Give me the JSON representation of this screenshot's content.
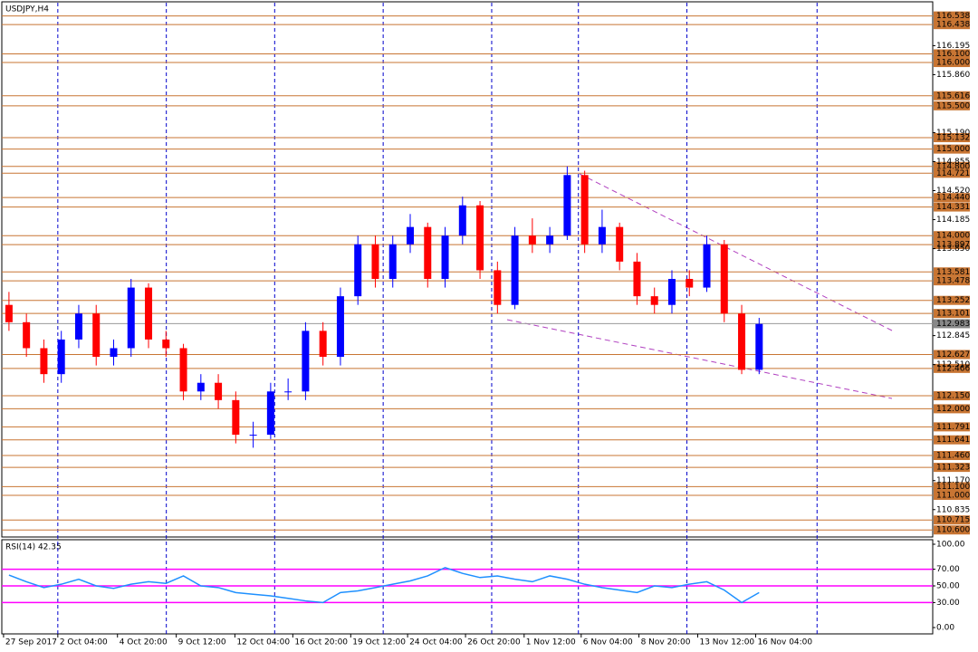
{
  "chart_data": [
    {
      "type": "candlestick",
      "title": "USDJPY,H4",
      "ohlc": [
        [
          113.2,
          113.35,
          112.9,
          113.0
        ],
        [
          113.0,
          113.1,
          112.6,
          112.7
        ],
        [
          112.7,
          112.8,
          112.3,
          112.4
        ],
        [
          112.4,
          112.9,
          112.3,
          112.8
        ],
        [
          112.8,
          113.2,
          112.7,
          113.1
        ],
        [
          113.1,
          113.2,
          112.5,
          112.6
        ],
        [
          112.6,
          112.8,
          112.5,
          112.7
        ],
        [
          112.7,
          113.5,
          112.6,
          113.4
        ],
        [
          113.4,
          113.45,
          112.7,
          112.8
        ],
        [
          112.8,
          112.9,
          112.6,
          112.7
        ],
        [
          112.7,
          112.75,
          112.1,
          112.2
        ],
        [
          112.2,
          112.4,
          112.1,
          112.3
        ],
        [
          112.3,
          112.4,
          112.0,
          112.1
        ],
        [
          112.1,
          112.2,
          111.6,
          111.7
        ],
        [
          111.7,
          111.85,
          111.55,
          111.7
        ],
        [
          111.7,
          112.3,
          111.65,
          112.2
        ],
        [
          112.2,
          112.35,
          112.1,
          112.2
        ],
        [
          112.2,
          113.0,
          112.1,
          112.9
        ],
        [
          112.9,
          113.0,
          112.5,
          112.6
        ],
        [
          112.6,
          113.4,
          112.5,
          113.3
        ],
        [
          113.3,
          114.0,
          113.2,
          113.9
        ],
        [
          113.9,
          114.0,
          113.4,
          113.5
        ],
        [
          113.5,
          114.0,
          113.4,
          113.9
        ],
        [
          113.9,
          114.25,
          113.8,
          114.1
        ],
        [
          114.1,
          114.15,
          113.4,
          113.5
        ],
        [
          113.5,
          114.1,
          113.4,
          114.0
        ],
        [
          114.0,
          114.45,
          113.9,
          114.35
        ],
        [
          114.35,
          114.4,
          113.5,
          113.6
        ],
        [
          113.6,
          113.7,
          113.1,
          113.2
        ],
        [
          113.2,
          114.1,
          113.15,
          114.0
        ],
        [
          114.0,
          114.2,
          113.8,
          113.9
        ],
        [
          113.9,
          114.1,
          113.8,
          114.0
        ],
        [
          114.0,
          114.8,
          113.95,
          114.7
        ],
        [
          114.7,
          114.75,
          113.8,
          113.9
        ],
        [
          113.9,
          114.3,
          113.8,
          114.1
        ],
        [
          114.1,
          114.15,
          113.6,
          113.7
        ],
        [
          113.7,
          113.8,
          113.2,
          113.3
        ],
        [
          113.3,
          113.4,
          113.1,
          113.2
        ],
        [
          113.2,
          113.6,
          113.1,
          113.5
        ],
        [
          113.5,
          113.6,
          113.3,
          113.4
        ],
        [
          113.4,
          114.0,
          113.35,
          113.9
        ],
        [
          113.9,
          113.95,
          113.0,
          113.1
        ],
        [
          113.1,
          113.2,
          112.4,
          112.45
        ],
        [
          112.45,
          113.05,
          112.4,
          112.98
        ]
      ],
      "up_color": "#0000ff",
      "down_color": "#ff0000",
      "xlim": [
        -0.41,
        52.95
      ],
      "xticks": [
        {
          "value": -0.31,
          "label": "27 Sep 2017"
        },
        {
          "value": 2.8,
          "label": "2 Oct 04:00"
        },
        {
          "value": 6.22,
          "label": "4 Oct 20:00"
        },
        {
          "value": 9.59,
          "label": "9 Oct 12:00"
        },
        {
          "value": 12.95,
          "label": "12 Oct 04:00"
        },
        {
          "value": 16.27,
          "label": "16 Oct 20:00"
        },
        {
          "value": 19.59,
          "label": "19 Oct 12:00"
        },
        {
          "value": 22.85,
          "label": "24 Oct 04:00"
        },
        {
          "value": 26.17,
          "label": "26 Oct 20:00"
        },
        {
          "value": 29.53,
          "label": "1 Nov 12:00"
        },
        {
          "value": 32.8,
          "label": "6 Nov 04:00"
        },
        {
          "value": 36.11,
          "label": "8 Nov 20:00"
        },
        {
          "value": 39.48,
          "label": "13 Nov 12:00"
        },
        {
          "value": 42.8,
          "label": "16 Nov 04:00"
        }
      ],
      "vlines": [
        2.8,
        9.02,
        15.23,
        21.45,
        27.67,
        32.64,
        38.86,
        46.32
      ],
      "ylim": [
        110.55,
        116.67
      ],
      "yticks": [
        116.195,
        {
          "value": 115.86,
          "label": "115.860"
        },
        {
          "value": 115.19,
          "label": "115.190"
        },
        114.855,
        {
          "value": 114.52,
          "label": "114.520"
        },
        114.185,
        {
          "value": 113.85,
          "label": "113.850"
        },
        112.845,
        {
          "value": 112.51,
          "label": "112.510"
        },
        {
          "value": 111.17,
          "label": "111.170"
        },
        110.835
      ],
      "levels": [
        116.538,
        116.438,
        {
          "value": 116.1,
          "label": "116.100"
        },
        {
          "value": 116.0,
          "label": "116.000"
        },
        115.616,
        {
          "value": 115.5,
          "label": "115.500"
        },
        115.132,
        {
          "value": 115.0,
          "label": "115.000"
        },
        {
          "value": 114.8,
          "label": "114.800"
        },
        114.721,
        {
          "value": 114.44,
          "label": "114.440"
        },
        114.331,
        {
          "value": 114.0,
          "label": "114.000"
        },
        113.897,
        113.581,
        113.478,
        113.252,
        113.101,
        112.627,
        112.466,
        {
          "value": 112.15,
          "label": "112.150"
        },
        {
          "value": 112.0,
          "label": "112.000"
        },
        111.791,
        111.641,
        {
          "value": 111.46,
          "label": "111.460"
        },
        111.323,
        {
          "value": 111.1,
          "label": "111.100"
        },
        {
          "value": 111.0,
          "label": "111.000"
        },
        110.715,
        {
          "value": 110.6,
          "label": "110.600"
        }
      ],
      "level_color": "#c87533",
      "current_price": 112.983
    },
    {
      "type": "line",
      "title": "RSI(14) 42.35",
      "color": "#1e90ff",
      "values": [
        63,
        55,
        48,
        52,
        58,
        50,
        47,
        52,
        55,
        53,
        62,
        50,
        48,
        42,
        40,
        38,
        35,
        32,
        30,
        42,
        44,
        48,
        52,
        56,
        62,
        72,
        65,
        60,
        62,
        58,
        55,
        62,
        58,
        52,
        48,
        45,
        42,
        50,
        48,
        52,
        55,
        45,
        30,
        42
      ],
      "ylim": [
        0,
        100
      ],
      "yticks": [
        {
          "value": 100,
          "label": "100.00"
        },
        {
          "value": 70,
          "label": "70.00"
        },
        {
          "value": 50,
          "label": "50.00"
        },
        {
          "value": 30,
          "label": "30.00"
        },
        {
          "value": 0,
          "label": "0.00"
        }
      ],
      "levels": [
        70,
        50,
        30
      ],
      "level_color": "#ff00ff"
    }
  ]
}
